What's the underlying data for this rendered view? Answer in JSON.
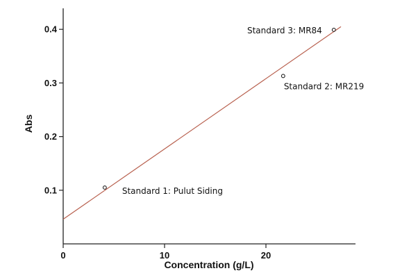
{
  "chart_data": {
    "type": "scatter",
    "title": "",
    "xlabel": "Concentration (g/L)",
    "ylabel": "Abs",
    "xlim": [
      0,
      28
    ],
    "ylim": [
      0,
      0.45
    ],
    "xticks": [
      0,
      10,
      20
    ],
    "yticks": [
      0.1,
      0.2,
      0.3,
      0.4
    ],
    "ytick_labels": [
      "0.1",
      "0.2",
      "0.3",
      "0.4"
    ],
    "grid": false,
    "series": [
      {
        "points": [
          {
            "x": 4.1,
            "y": 0.105,
            "label": "Standard 1: Pulut Siding"
          },
          {
            "x": 21.7,
            "y": 0.313,
            "label": "Standard 2: MR219"
          },
          {
            "x": 26.7,
            "y": 0.399,
            "label": "Standard 3: MR84"
          }
        ],
        "color": "#222222"
      }
    ],
    "trendline": {
      "x": [
        0,
        27.4
      ],
      "y": [
        0.046,
        0.405
      ],
      "color": "#b8604e"
    }
  }
}
